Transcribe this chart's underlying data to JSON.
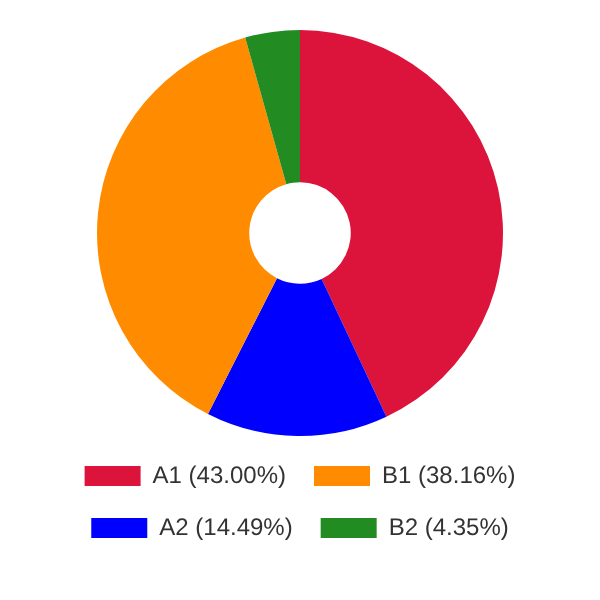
{
  "chart_data": {
    "type": "donut",
    "categories": [
      "A1 (43.00%)",
      "A2 (14.49%)",
      "B1 (38.16%)",
      "B2 (4.35%)"
    ],
    "values": [
      43.0,
      14.49,
      38.16,
      4.35
    ],
    "colors": [
      "#dc143c",
      "#0000ff",
      "#ff8c00",
      "#228b22"
    ],
    "legend": "bottom"
  }
}
